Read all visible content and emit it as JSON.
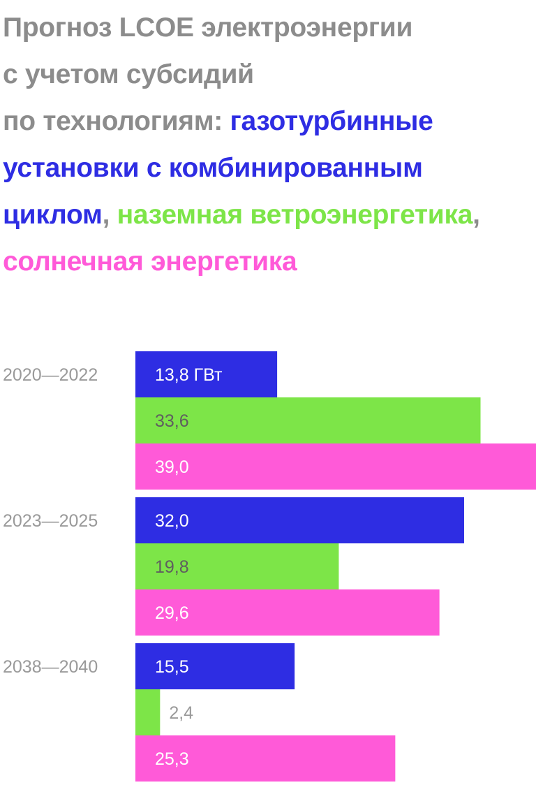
{
  "title": {
    "line1": "Прогноз LCOE электроэнергии",
    "line2": "с учетом субсидий",
    "line3_prefix": "по технологиям: ",
    "series_gas": "газотурбинные установки с комбинированным циклом",
    "sep1": ", ",
    "series_wind": "наземная ветроэнергетика",
    "sep2": ", ",
    "series_solar": "солнечная энергетика"
  },
  "colors": {
    "title_gray": "#8c8c8c",
    "gas": "#2e2de3",
    "wind": "#7de548",
    "solar": "#ff5ad8",
    "label_light": "#ffffff",
    "label_dark": "#5f5f5f",
    "label_outside": "#9a9a9a",
    "category_label": "#9a9a9a"
  },
  "chart_data": {
    "type": "bar",
    "orientation": "horizontal",
    "title": "Прогноз LCOE электроэнергии с учетом субсидий по технологиям: газотурбинные установки с комбинированным циклом, наземная ветроэнергетика, солнечная энергетика",
    "categories": [
      "2020—2022",
      "2023—2025",
      "2038—2040"
    ],
    "unit": "ГВт",
    "series": [
      {
        "name": "газотурбинные установки с комбинированным циклом",
        "color": "#2e2de3",
        "values": [
          13.8,
          32.0,
          15.5
        ],
        "labels": [
          "13,8 ГВт",
          "32,0",
          "15,5"
        ]
      },
      {
        "name": "наземная ветроэнергетика",
        "color": "#7de548",
        "values": [
          33.6,
          19.8,
          2.4
        ],
        "labels": [
          "33,6",
          "19,8",
          "2,4"
        ]
      },
      {
        "name": "солнечная энергетика",
        "color": "#ff5ad8",
        "values": [
          39.0,
          29.6,
          25.3
        ],
        "labels": [
          "39,0",
          "29,6",
          "25,3"
        ]
      }
    ],
    "xlim": [
      0,
      39.0
    ],
    "grid": false,
    "legend": "title"
  }
}
